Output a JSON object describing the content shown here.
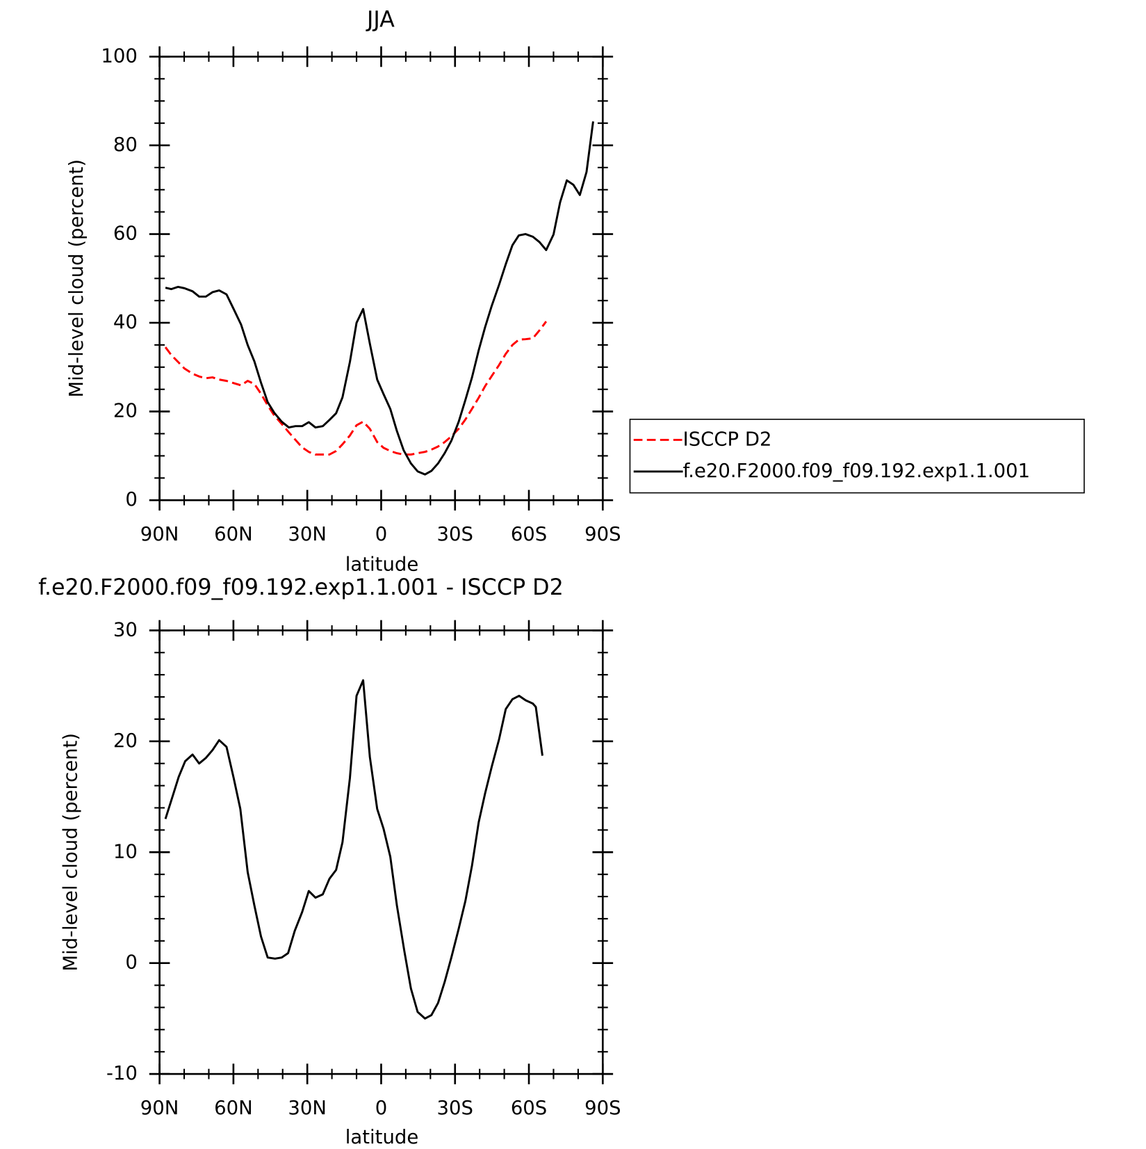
{
  "chart_data": [
    {
      "type": "line",
      "title": "JJA",
      "ylabel": "Mid-level cloud (percent)",
      "xlabel": "latitude",
      "xlim": [
        90,
        -90
      ],
      "xticks": [
        {
          "value": 90,
          "label": "90N"
        },
        {
          "value": 60,
          "label": "60N"
        },
        {
          "value": 30,
          "label": "30N"
        },
        0,
        {
          "value": -30,
          "label": "30S"
        },
        {
          "value": -60,
          "label": "60S"
        },
        {
          "value": -90,
          "label": "90S"
        }
      ],
      "ylim": [
        0,
        100
      ],
      "yticks": [
        0,
        20,
        40,
        60,
        80,
        100
      ],
      "legend": "right",
      "x": [
        87.6,
        85.2,
        82.5,
        79.9,
        76.6,
        73.9,
        71.2,
        68.5,
        65.8,
        62.8,
        59.9,
        56.9,
        54.2,
        51.5,
        48.8,
        46.1,
        43.4,
        40.4,
        37.5,
        34.8,
        32.1,
        29.4,
        26.7,
        23.7,
        21.0,
        18.3,
        15.7,
        12.7,
        10.0,
        7.3,
        4.6,
        1.6,
        -1.0,
        -3.7,
        -6.4,
        -9.1,
        -12.1,
        -14.8,
        -17.8,
        -20.4,
        -23.1,
        -25.8,
        -28.5,
        -31.5,
        -34.2,
        -36.9,
        -39.6,
        -42.2,
        -44.9,
        -47.9,
        -50.6,
        -53.3,
        -55.9,
        -58.6,
        -61.6,
        -64.3,
        -67.0,
        -70.0,
        -72.7,
        -75.4,
        -78.1,
        -80.7,
        -83.4,
        -86.1
      ],
      "series": [
        {
          "name": "ISCCP D2",
          "color": "#ff0000",
          "dash": true,
          "values": [
            34.5,
            32.7,
            31.2,
            29.7,
            28.5,
            27.9,
            27.5,
            27.7,
            27.2,
            26.9,
            26.4,
            25.9,
            26.9,
            26.2,
            24.0,
            21.4,
            19.1,
            17.2,
            15.3,
            13.6,
            11.9,
            10.9,
            10.3,
            10.3,
            10.3,
            11.1,
            12.6,
            14.6,
            16.9,
            17.7,
            16.1,
            13.1,
            11.8,
            11.1,
            10.6,
            10.3,
            10.3,
            10.6,
            10.9,
            11.4,
            12.1,
            13.1,
            14.4,
            16.1,
            18.2,
            20.6,
            23.1,
            25.7,
            28.0,
            30.5,
            33.0,
            35.0,
            36.2,
            36.3,
            36.5,
            38.3,
            40.3,
            null,
            null,
            null,
            null,
            null,
            null,
            null
          ]
        },
        {
          "name": "f.e20.F2000.f09_f09.192.exp1.1.001",
          "color": "#000000",
          "dash": false,
          "values": [
            47.9,
            47.6,
            48.1,
            47.8,
            47.1,
            45.9,
            45.9,
            46.9,
            47.3,
            46.4,
            43.1,
            39.6,
            35.0,
            31.3,
            26.5,
            22.1,
            19.7,
            17.7,
            16.4,
            16.7,
            16.7,
            17.6,
            16.4,
            16.7,
            18.1,
            19.6,
            23.2,
            31.2,
            40.0,
            43.1,
            35.3,
            27.2,
            23.9,
            20.6,
            15.6,
            11.3,
            8.3,
            6.5,
            5.8,
            6.6,
            8.3,
            10.6,
            13.4,
            17.7,
            22.6,
            27.7,
            33.8,
            39.0,
            43.8,
            48.6,
            53.2,
            57.5,
            59.7,
            60.0,
            59.4,
            58.2,
            56.4,
            59.9,
            67.2,
            72.1,
            71.1,
            68.8,
            74.0,
            85.4
          ]
        }
      ]
    },
    {
      "type": "line",
      "title": "f.e20.F2000.f09_f09.192.exp1.1.001 - ISCCP D2",
      "ylabel": "Mid-level cloud (percent)",
      "xlabel": "latitude",
      "xlim": [
        90,
        -90
      ],
      "xticks": [
        {
          "value": 90,
          "label": "90N"
        },
        {
          "value": 60,
          "label": "60N"
        },
        {
          "value": 30,
          "label": "30N"
        },
        0,
        {
          "value": -30,
          "label": "30S"
        },
        {
          "value": -60,
          "label": "60S"
        },
        {
          "value": -90,
          "label": "90S"
        }
      ],
      "ylim": [
        -10,
        30
      ],
      "yticks": [
        -10,
        0,
        10,
        20,
        30
      ],
      "x": [
        87.6,
        84.9,
        82.2,
        79.6,
        76.6,
        73.9,
        71.2,
        68.5,
        65.8,
        62.8,
        59.9,
        57.2,
        54.2,
        51.5,
        48.8,
        46.1,
        43.1,
        40.4,
        37.8,
        35.1,
        32.1,
        29.4,
        26.7,
        23.7,
        21.0,
        18.3,
        15.7,
        12.7,
        10.0,
        7.3,
        4.6,
        1.6,
        -1.0,
        -3.7,
        -6.4,
        -9.4,
        -12.1,
        -14.8,
        -17.8,
        -20.4,
        -23.1,
        -25.8,
        -28.5,
        -31.5,
        -34.2,
        -36.9,
        -39.6,
        -42.2,
        -44.9,
        -47.9,
        -50.6,
        -53.3,
        -56.0,
        -58.7,
        -61.6,
        -62.8,
        -65.5
      ],
      "series": [
        {
          "color": "#000000",
          "dash": false,
          "values": [
            13.0,
            14.9,
            16.8,
            18.2,
            18.8,
            18.0,
            18.5,
            19.2,
            20.1,
            19.5,
            16.7,
            13.9,
            8.2,
            5.2,
            2.4,
            0.5,
            0.4,
            0.5,
            0.9,
            2.9,
            4.6,
            6.5,
            5.9,
            6.2,
            7.6,
            8.4,
            10.9,
            16.7,
            24.1,
            25.5,
            18.6,
            13.9,
            12.1,
            9.6,
            5.2,
            1.1,
            -2.3,
            -4.4,
            -5.0,
            -4.7,
            -3.6,
            -1.7,
            0.5,
            3.1,
            5.6,
            8.8,
            12.7,
            15.3,
            17.7,
            20.2,
            22.9,
            23.8,
            24.1,
            23.7,
            23.4,
            23.1,
            18.7
          ]
        }
      ]
    }
  ]
}
